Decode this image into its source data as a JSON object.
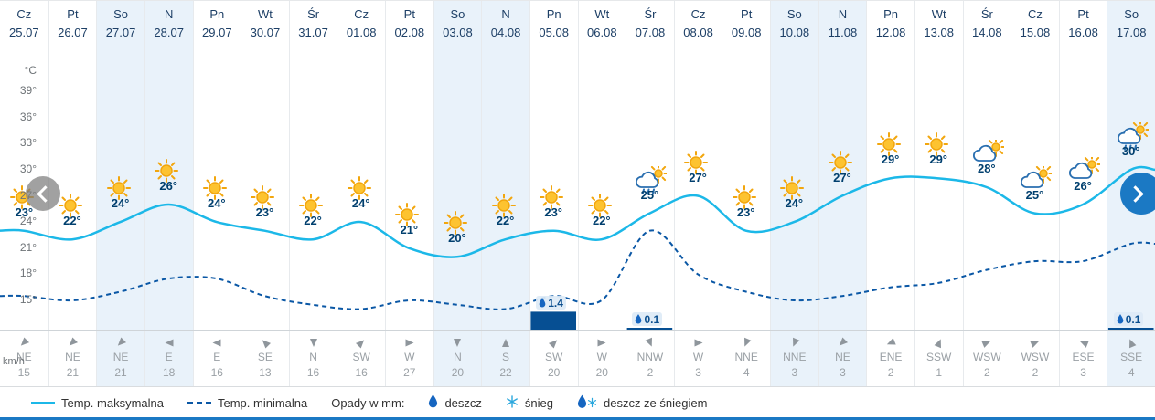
{
  "columns": [
    {
      "day": "Cz",
      "date": "25.07",
      "weekend": false,
      "icon": "sun",
      "wind": {
        "dir": "NE",
        "speed": 15
      }
    },
    {
      "day": "Pt",
      "date": "26.07",
      "weekend": false,
      "icon": "sun",
      "wind": {
        "dir": "NE",
        "speed": 21
      }
    },
    {
      "day": "So",
      "date": "27.07",
      "weekend": true,
      "icon": "sun",
      "wind": {
        "dir": "NE",
        "speed": 21
      }
    },
    {
      "day": "N",
      "date": "28.07",
      "weekend": true,
      "icon": "sun",
      "wind": {
        "dir": "E",
        "speed": 18
      }
    },
    {
      "day": "Pn",
      "date": "29.07",
      "weekend": false,
      "icon": "sun",
      "wind": {
        "dir": "E",
        "speed": 16
      }
    },
    {
      "day": "Wt",
      "date": "30.07",
      "weekend": false,
      "icon": "sun",
      "wind": {
        "dir": "SE",
        "speed": 13
      }
    },
    {
      "day": "Śr",
      "date": "31.07",
      "weekend": false,
      "icon": "sun",
      "wind": {
        "dir": "N",
        "speed": 16
      }
    },
    {
      "day": "Cz",
      "date": "01.08",
      "weekend": false,
      "icon": "sun",
      "wind": {
        "dir": "SW",
        "speed": 16
      }
    },
    {
      "day": "Pt",
      "date": "02.08",
      "weekend": false,
      "icon": "sun",
      "wind": {
        "dir": "W",
        "speed": 27
      }
    },
    {
      "day": "So",
      "date": "03.08",
      "weekend": true,
      "icon": "sun",
      "wind": {
        "dir": "N",
        "speed": 20
      }
    },
    {
      "day": "N",
      "date": "04.08",
      "weekend": true,
      "icon": "sun",
      "wind": {
        "dir": "S",
        "speed": 22
      }
    },
    {
      "day": "Pn",
      "date": "05.08",
      "weekend": false,
      "icon": "sun",
      "wind": {
        "dir": "SW",
        "speed": 20
      }
    },
    {
      "day": "Wt",
      "date": "06.08",
      "weekend": false,
      "icon": "sun",
      "wind": {
        "dir": "W",
        "speed": 20
      }
    },
    {
      "day": "Śr",
      "date": "07.08",
      "weekend": false,
      "icon": "rain-sun",
      "wind": {
        "dir": "NNW",
        "speed": 2
      }
    },
    {
      "day": "Cz",
      "date": "08.08",
      "weekend": false,
      "icon": "sun",
      "wind": {
        "dir": "W",
        "speed": 3
      }
    },
    {
      "day": "Pt",
      "date": "09.08",
      "weekend": false,
      "icon": "sun",
      "wind": {
        "dir": "NNE",
        "speed": 4
      }
    },
    {
      "day": "So",
      "date": "10.08",
      "weekend": true,
      "icon": "sun",
      "wind": {
        "dir": "NNE",
        "speed": 3
      }
    },
    {
      "day": "N",
      "date": "11.08",
      "weekend": true,
      "icon": "sun",
      "wind": {
        "dir": "NE",
        "speed": 3
      }
    },
    {
      "day": "Pn",
      "date": "12.08",
      "weekend": false,
      "icon": "sun",
      "wind": {
        "dir": "ENE",
        "speed": 2
      }
    },
    {
      "day": "Wt",
      "date": "13.08",
      "weekend": false,
      "icon": "sun",
      "wind": {
        "dir": "SSW",
        "speed": 1
      }
    },
    {
      "day": "Śr",
      "date": "14.08",
      "weekend": false,
      "icon": "cloud-sun",
      "wind": {
        "dir": "WSW",
        "speed": 2
      }
    },
    {
      "day": "Cz",
      "date": "15.08",
      "weekend": false,
      "icon": "cloud-sun",
      "wind": {
        "dir": "WSW",
        "speed": 2
      }
    },
    {
      "day": "Pt",
      "date": "16.08",
      "weekend": false,
      "icon": "cloud-sun",
      "wind": {
        "dir": "ESE",
        "speed": 3
      }
    },
    {
      "day": "So",
      "date": "17.08",
      "weekend": true,
      "icon": "rain-sun",
      "wind": {
        "dir": "SSE",
        "speed": 4
      }
    }
  ],
  "chart_data": {
    "type": "line",
    "x_categories": [
      "25.07",
      "26.07",
      "27.07",
      "28.07",
      "29.07",
      "30.07",
      "31.07",
      "01.08",
      "02.08",
      "03.08",
      "04.08",
      "05.08",
      "06.08",
      "07.08",
      "08.08",
      "09.08",
      "10.08",
      "11.08",
      "12.08",
      "13.08",
      "14.08",
      "15.08",
      "16.08",
      "17.08"
    ],
    "x_day_names": [
      "Cz",
      "Pt",
      "So",
      "N",
      "Pn",
      "Wt",
      "Śr",
      "Cz",
      "Pt",
      "So",
      "N",
      "Pn",
      "Wt",
      "Śr",
      "Cz",
      "Pt",
      "So",
      "N",
      "Pn",
      "Wt",
      "Śr",
      "Cz",
      "Pt",
      "So"
    ],
    "series": [
      {
        "name": "Temp. maksymalna",
        "style": "solid",
        "color": "#1cb8e8",
        "values": [
          23,
          22,
          24,
          26,
          24,
          23,
          22,
          24,
          21,
          20,
          22,
          23,
          22,
          25,
          27,
          23,
          24,
          27,
          29,
          29,
          28,
          25,
          26,
          30
        ]
      },
      {
        "name": "Temp. minimalna",
        "style": "dashed",
        "color": "#0a57a5",
        "values": [
          15.5,
          15,
          16,
          17.5,
          17.5,
          15.5,
          14.5,
          14,
          15,
          14.5,
          14,
          15.5,
          15,
          23,
          18,
          16,
          15,
          15.5,
          16.5,
          17,
          18.5,
          19.5,
          19.5,
          21.5
        ]
      }
    ],
    "precipitation": {
      "unit": "mm",
      "bars": [
        {
          "index": 11,
          "value": 1.4
        },
        {
          "index": 13,
          "value": 0.1
        },
        {
          "index": 23,
          "value": 0.1
        }
      ]
    },
    "y_axis": {
      "unit": "°C",
      "ticks": [
        39,
        36,
        33,
        30,
        27,
        24,
        21,
        18,
        15
      ]
    },
    "wind": {
      "unit": "km/h"
    },
    "legend_position": "bottom",
    "grid": false
  },
  "legend": {
    "max_label": "Temp. maksymalna",
    "min_label": "Temp. minimalna",
    "precip_label": "Opady w mm:",
    "rain_label": "deszcz",
    "snow_label": "śnieg",
    "rain_snow_label": "deszcz ze śniegiem"
  },
  "colors": {
    "accent_blue": "#1b79c4",
    "max_line": "#1cb8e8",
    "min_line": "#0a57a5",
    "precip_bar": "#064f93",
    "weekend_bg": "#e9f2fa",
    "sun": "#f2a60d"
  }
}
